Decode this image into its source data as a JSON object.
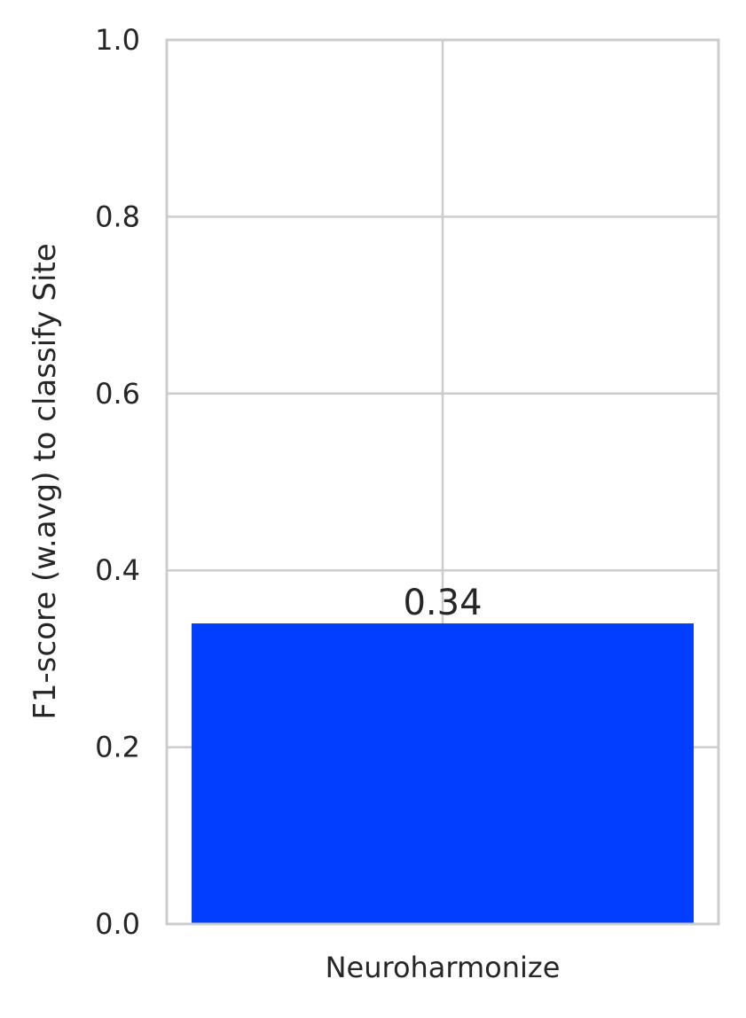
{
  "chart_data": {
    "type": "bar",
    "categories": [
      "Neuroharmonize"
    ],
    "values": [
      0.34
    ],
    "data_labels": [
      "0.34"
    ],
    "title": "",
    "xlabel": "",
    "ylabel": "F1-score (w.avg) to classify Site",
    "ylim": [
      0,
      1.0
    ],
    "yticks": [
      0.0,
      0.2,
      0.4,
      0.6,
      0.8,
      1.0
    ],
    "ytick_labels": [
      "0.0",
      "0.2",
      "0.4",
      "0.6",
      "0.8",
      "1.0"
    ],
    "grid": true,
    "legend": "none",
    "colors": {
      "bar": "#023eff",
      "grid": "#cccccc",
      "spine": "#cccccc",
      "text": "#262626"
    }
  }
}
